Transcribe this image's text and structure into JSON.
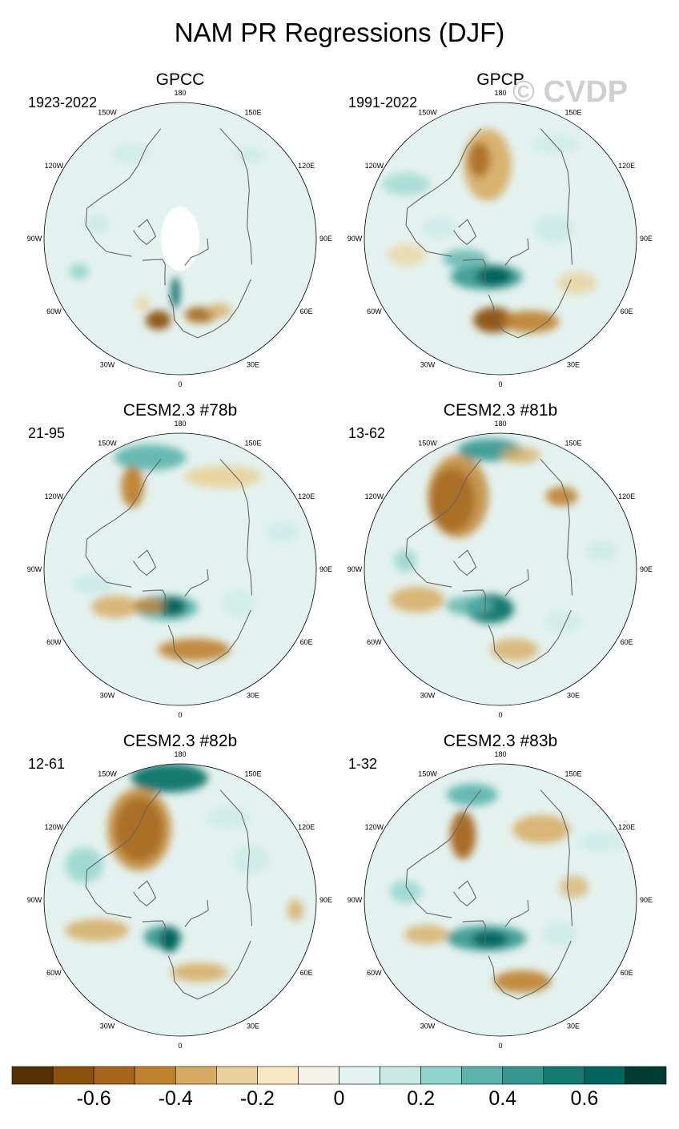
{
  "title": "NAM PR Regressions (DJF)",
  "watermark": "© CVDP",
  "lon_labels": {
    "top": "180",
    "bottom": "0",
    "left": [
      "150W",
      "120W",
      "90W",
      "60W",
      "30W"
    ],
    "right": [
      "150E",
      "120E",
      "90E",
      "60E",
      "30E"
    ]
  },
  "panels": [
    {
      "name": "GPCC",
      "period": "1923-2022",
      "pattern": "gpcc"
    },
    {
      "name": "GPCP",
      "period": "1991-2022",
      "pattern": "gpcp"
    },
    {
      "name": "CESM2.3 #78b",
      "period": "21-95",
      "pattern": "m78"
    },
    {
      "name": "CESM2.3 #81b",
      "period": "13-62",
      "pattern": "m81"
    },
    {
      "name": "CESM2.3 #82b",
      "period": "12-61",
      "pattern": "m82"
    },
    {
      "name": "CESM2.3 #83b",
      "period": "1-32",
      "pattern": "m83"
    }
  ],
  "colorbar": {
    "colors": [
      "#543005",
      "#8c510a",
      "#a6651b",
      "#bf812d",
      "#d6ac63",
      "#e8d19a",
      "#f6e8c3",
      "#f5f2e8",
      "#e4f2ef",
      "#c7eae5",
      "#90d5cb",
      "#5ab4ac",
      "#35978f",
      "#137a6f",
      "#01665e",
      "#003c30"
    ],
    "tick_labels": [
      "-0.6",
      "-0.4",
      "-0.2",
      "0",
      "0.2",
      "0.4",
      "0.6"
    ],
    "tick_positions": [
      2,
      4,
      6,
      8,
      10,
      12,
      14
    ]
  }
}
